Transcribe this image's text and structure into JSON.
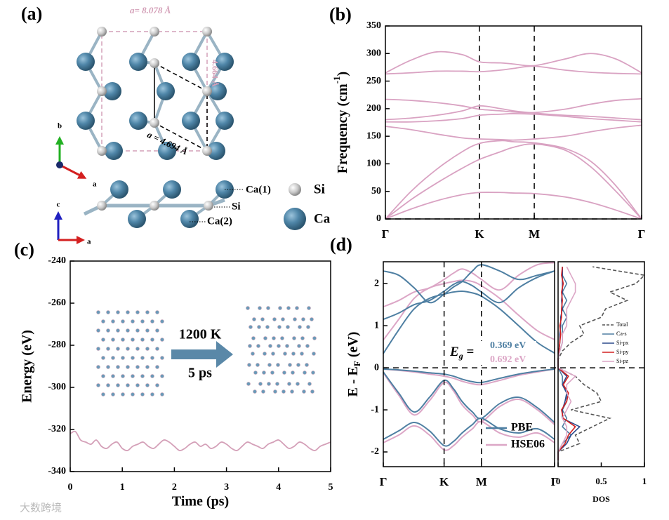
{
  "structure": {
    "label": "(a)",
    "lattice_long": "a= 8.078 Å",
    "lattice_side": "4.664 Å",
    "lattice_short": "a = 4.694 Å",
    "axis_top": [
      "b",
      "a"
    ],
    "axis_side": [
      "c",
      "a"
    ],
    "site_labels": [
      "Ca(1)",
      "Si",
      "Ca(2)"
    ],
    "legend": [
      "Si",
      "Ca"
    ]
  },
  "watermark": "大数跨境",
  "chart_data": [
    {
      "type": "line",
      "label": "(b)",
      "ylabel": {
        "text": "Frequency (cm",
        "sup": "-1",
        "end": ")"
      },
      "x": [
        0,
        0.1,
        0.2,
        0.3,
        0.367,
        0.45,
        0.5,
        0.581,
        0.7,
        0.8,
        0.9,
        1
      ],
      "xlim": [
        0,
        1
      ],
      "xticks": [
        {
          "value": 0,
          "label": "Γ"
        },
        {
          "value": 0.367,
          "label": "K"
        },
        {
          "value": 0.581,
          "label": "M"
        },
        {
          "value": 1,
          "label": "Γ"
        }
      ],
      "ylim": [
        0,
        350
      ],
      "yticks": [
        0,
        50,
        100,
        150,
        200,
        250,
        300,
        350
      ],
      "color": "#d9a2c2",
      "series": [
        {
          "values": [
            0,
            18,
            33,
            44,
            48,
            48,
            47,
            46,
            40,
            30,
            16,
            0
          ]
        },
        {
          "values": [
            0,
            35,
            65,
            92,
            108,
            122,
            130,
            136,
            125,
            95,
            50,
            0
          ]
        },
        {
          "values": [
            0,
            50,
            90,
            122,
            137,
            142,
            140,
            138,
            128,
            105,
            60,
            0
          ]
        },
        {
          "values": [
            168,
            162,
            154,
            147,
            145,
            144,
            143,
            145,
            150,
            158,
            165,
            170
          ]
        },
        {
          "values": [
            176,
            176,
            178,
            182,
            188,
            190,
            191,
            190,
            186,
            182,
            179,
            176
          ]
        },
        {
          "values": [
            180,
            183,
            188,
            196,
            205,
            200,
            196,
            192,
            188,
            186,
            183,
            180
          ]
        },
        {
          "values": [
            217,
            215,
            211,
            205,
            199,
            196,
            194,
            193,
            199,
            208,
            215,
            218
          ]
        },
        {
          "values": [
            263,
            265,
            268,
            268,
            267,
            270,
            273,
            277,
            270,
            266,
            264,
            263
          ]
        },
        {
          "values": [
            265,
            288,
            303,
            298,
            285,
            283,
            281,
            278,
            290,
            300,
            290,
            265
          ]
        }
      ]
    },
    {
      "type": "line",
      "label": "(c)",
      "xlabel": "Time (ps)",
      "ylabel": "Energy (eV)",
      "color": "#d4a0b8",
      "annotations": [
        "1200 K",
        "5 ps"
      ],
      "x": [
        0,
        0.1,
        0.2,
        0.3,
        0.4,
        0.5,
        0.6,
        0.7,
        0.8,
        0.9,
        1,
        1.1,
        1.2,
        1.3,
        1.4,
        1.5,
        1.6,
        1.7,
        1.8,
        1.9,
        2,
        2.1,
        2.2,
        2.3,
        2.4,
        2.5,
        2.6,
        2.7,
        2.8,
        2.9,
        3,
        3.1,
        3.2,
        3.3,
        3.4,
        3.5,
        3.6,
        3.7,
        3.8,
        3.9,
        4,
        4.1,
        4.2,
        4.3,
        4.4,
        4.5,
        4.6,
        4.7,
        4.8,
        4.9,
        5
      ],
      "series": [
        {
          "values": [
            -322,
            -321,
            -325,
            -326,
            -327,
            -325,
            -328,
            -329,
            -327,
            -326,
            -329,
            -330,
            -328,
            -327,
            -326,
            -328,
            -329,
            -327,
            -325,
            -326,
            -328,
            -330,
            -329,
            -327,
            -326,
            -328,
            -327,
            -329,
            -328,
            -326,
            -327,
            -329,
            -330,
            -328,
            -326,
            -327,
            -328,
            -329,
            -327,
            -326,
            -325,
            -327,
            -329,
            -328,
            -326,
            -327,
            -329,
            -330,
            -328,
            -327,
            -326
          ]
        }
      ],
      "xlim": [
        0,
        5
      ],
      "xticks": [
        0,
        1,
        2,
        3,
        4,
        5
      ],
      "ylim": [
        -340,
        -240
      ],
      "yticks": [
        -340,
        -320,
        -300,
        -280,
        -260,
        -240
      ]
    },
    {
      "type": "band",
      "label": "(d)",
      "ylabel": {
        "text": "E - E",
        "sub": "F",
        "end": " (eV)"
      },
      "gap": {
        "text": "E",
        "sub": "g",
        "end": " =",
        "labels": [
          "0.369 eV",
          "0.692 eV"
        ]
      },
      "x": [
        0,
        0.09,
        0.18,
        0.27,
        0.355,
        0.41,
        0.46,
        0.52,
        0.573,
        0.68,
        0.79,
        0.9,
        1
      ],
      "xlim": [
        0,
        1
      ],
      "xticks": [
        {
          "value": 0,
          "label": "Γ"
        },
        {
          "value": 0.355,
          "label": "K"
        },
        {
          "value": 0.573,
          "label": "M"
        },
        {
          "value": 1,
          "label": "Γ"
        }
      ],
      "ylim": [
        -2.35,
        2.52
      ],
      "yticks": [
        -2,
        -1,
        0,
        1,
        2
      ],
      "series": [
        {
          "name": "PBE",
          "color": "#4e7fa2",
          "bands": [
            [
              -0.03,
              -0.05,
              -0.08,
              -0.12,
              -0.15,
              -0.2,
              -0.27,
              -0.33,
              -0.35,
              -0.25,
              -0.15,
              -0.08,
              -0.03
            ],
            [
              -0.1,
              -0.6,
              -1.05,
              -0.7,
              -0.3,
              -0.5,
              -0.8,
              -1.05,
              -1.2,
              -0.85,
              -0.7,
              -0.95,
              -1.3
            ],
            [
              -1.7,
              -1.5,
              -1.3,
              -1.5,
              -1.85,
              -1.75,
              -1.55,
              -1.35,
              -1.2,
              -1.45,
              -1.55,
              -1.45,
              -1.7
            ],
            [
              0.34,
              0.9,
              1.4,
              1.65,
              1.75,
              1.8,
              1.82,
              1.78,
              1.7,
              1.4,
              1.0,
              0.6,
              0.35
            ],
            [
              1.15,
              1.3,
              1.5,
              1.6,
              1.82,
              1.98,
              2.05,
              1.95,
              1.8,
              1.55,
              1.9,
              2.15,
              2.3
            ],
            [
              2.3,
              2.2,
              1.9,
              1.55,
              1.75,
              1.92,
              2.05,
              2.3,
              2.45,
              2.3,
              2.1,
              2.2,
              2.3
            ]
          ]
        },
        {
          "name": "HSE06",
          "color": "#dca6c6",
          "bands": [
            [
              -0.03,
              -0.06,
              -0.1,
              -0.15,
              -0.2,
              -0.25,
              -0.32,
              -0.38,
              -0.4,
              -0.3,
              -0.18,
              -0.1,
              -0.03
            ],
            [
              -0.12,
              -0.65,
              -1.12,
              -0.78,
              -0.35,
              -0.55,
              -0.88,
              -1.12,
              -1.28,
              -0.92,
              -0.75,
              -1.0,
              -1.35
            ],
            [
              -1.78,
              -1.6,
              -1.38,
              -1.6,
              -1.95,
              -1.85,
              -1.65,
              -1.45,
              -1.28,
              -1.55,
              -1.65,
              -1.55,
              -1.78
            ],
            [
              0.66,
              1.15,
              1.65,
              1.9,
              2.0,
              2.05,
              2.08,
              2.05,
              1.95,
              1.65,
              1.25,
              0.88,
              0.67
            ],
            [
              1.45,
              1.6,
              1.8,
              1.9,
              2.1,
              2.25,
              2.35,
              2.25,
              2.1,
              1.85,
              2.2,
              2.45,
              2.5
            ]
          ]
        }
      ]
    },
    {
      "type": "dos",
      "xlabel": "DOS",
      "xlim": [
        0,
        1
      ],
      "xticks": [
        0,
        0.5,
        1
      ],
      "ylim": [
        -2.35,
        2.52
      ],
      "y": [
        -2.2,
        -2.0,
        -1.8,
        -1.6,
        -1.4,
        -1.2,
        -1.0,
        -0.8,
        -0.6,
        -0.4,
        -0.2,
        0,
        0.2,
        0.4,
        0.6,
        0.8,
        1.0,
        1.2,
        1.4,
        1.6,
        1.8,
        2.0,
        2.2,
        2.4
      ],
      "series": [
        {
          "name": "Total",
          "color": "#555555",
          "dashed": true,
          "values": [
            0,
            0,
            0.25,
            0.2,
            0.4,
            0.6,
            0.15,
            0.5,
            0.45,
            0.3,
            0.2,
            0,
            0,
            0.05,
            0.15,
            0.3,
            0.25,
            0.5,
            0.55,
            0.8,
            0.6,
            0.9,
            1.0,
            0.4
          ]
        },
        {
          "name": "Ca-s",
          "color": "#4e7fa2",
          "values": [
            0,
            0,
            0.05,
            0.15,
            0.05,
            0.1,
            0.05,
            0.1,
            0.1,
            0.05,
            0.05,
            0,
            0,
            0.02,
            0.05,
            0.05,
            0.05,
            0.1,
            0.05,
            0.1,
            0.05,
            0.1,
            0.05,
            0.05
          ]
        },
        {
          "name": "Si-px",
          "color": "#2c4a8c",
          "values": [
            0,
            0,
            0.1,
            0.15,
            0.25,
            0.05,
            0.05,
            0.08,
            0.1,
            0.05,
            0.1,
            0,
            0,
            0.01,
            0.02,
            0.02,
            0.03,
            0.03,
            0.05,
            0.04,
            0.05,
            0.05,
            0.05,
            0.05
          ]
        },
        {
          "name": "Si-py",
          "color": "#d42020",
          "values": [
            0,
            0,
            0.08,
            0.12,
            0.2,
            0.06,
            0.04,
            0.1,
            0.12,
            0.06,
            0.12,
            0,
            0,
            0.01,
            0.02,
            0.03,
            0.02,
            0.04,
            0.04,
            0.05,
            0.04,
            0.06,
            0.04,
            0.05
          ]
        },
        {
          "name": "Si-pz",
          "color": "#dca6c6",
          "values": [
            0,
            0,
            0.05,
            0.1,
            0.1,
            0.05,
            0.1,
            0.15,
            0.1,
            0.1,
            0.2,
            0,
            0,
            0.02,
            0.05,
            0.05,
            0.1,
            0.1,
            0.1,
            0.15,
            0.2,
            0.2,
            0.15,
            0.1
          ]
        }
      ]
    }
  ]
}
